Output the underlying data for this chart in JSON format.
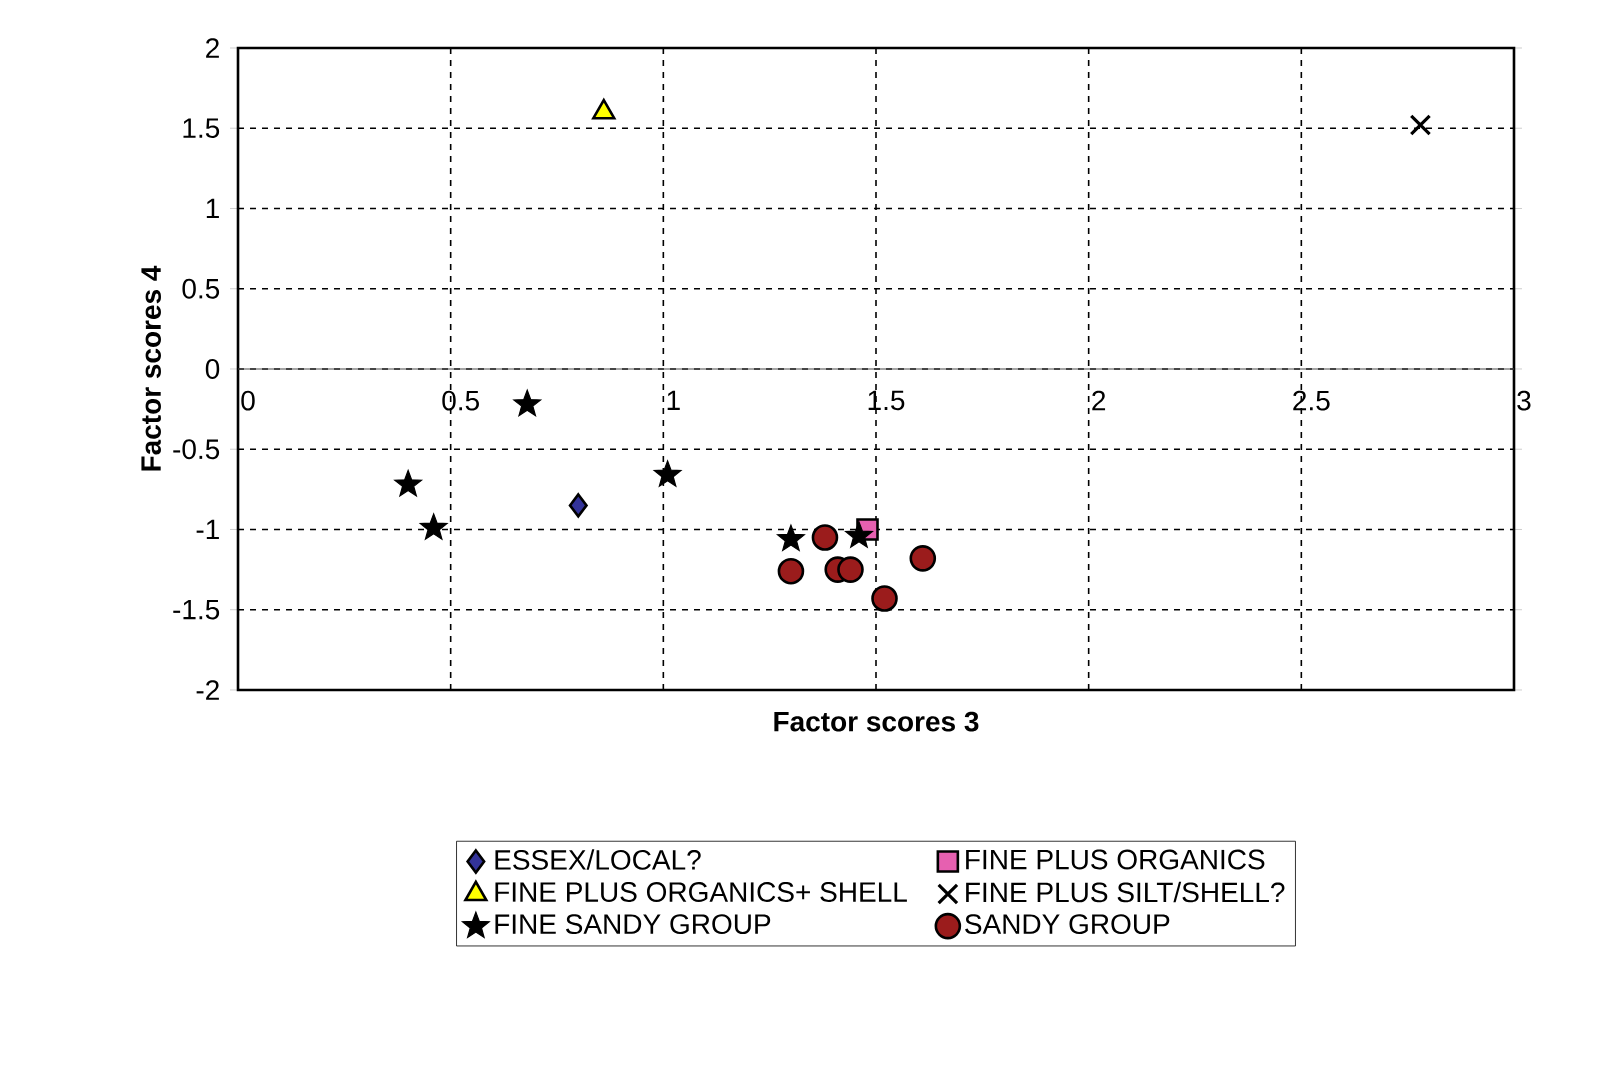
{
  "chart_data": {
    "type": "scatter",
    "xlabel": "Factor scores 3",
    "ylabel": "Factor scores 4",
    "xlim": [
      0,
      3
    ],
    "ylim": [
      -2,
      2
    ],
    "xticks": [
      0,
      0.5,
      1,
      1.5,
      2,
      2.5,
      3
    ],
    "yticks": [
      -2,
      -1.5,
      -1,
      -0.5,
      0,
      0.5,
      1,
      1.5,
      2
    ],
    "grid": true,
    "legend": "bottom",
    "series": [
      {
        "name": "ESSEX/LOCAL?",
        "color": "#333399",
        "marker": "diamond",
        "x": [
          0.8
        ],
        "values": [
          -0.85
        ]
      },
      {
        "name": "FINE PLUS ORGANICS",
        "color": "#e660b0",
        "marker": "square",
        "x": [
          1.48
        ],
        "values": [
          -1.0
        ]
      },
      {
        "name": "FINE PLUS ORGANICS+ SHELL",
        "color": "#ffff00",
        "marker": "triangle",
        "x": [
          0.86
        ],
        "values": [
          1.6
        ]
      },
      {
        "name": "FINE PLUS SILT/SHELL?",
        "color": "#000000",
        "marker": "cross",
        "x": [
          2.78
        ],
        "values": [
          1.52
        ]
      },
      {
        "name": "FINE SANDY GROUP",
        "color": "#000000",
        "marker": "star",
        "x": [
          0.68,
          0.4,
          0.46,
          1.01,
          1.3,
          1.46
        ],
        "values": [
          -0.22,
          -0.72,
          -0.99,
          -0.66,
          -1.06,
          -1.04
        ]
      },
      {
        "name": "SANDY GROUP",
        "color": "#9b1c1c",
        "marker": "circle",
        "x": [
          1.3,
          1.38,
          1.41,
          1.44,
          1.52,
          1.61
        ],
        "values": [
          -1.26,
          -1.05,
          -1.25,
          -1.25,
          -1.43,
          -1.18
        ]
      }
    ]
  }
}
